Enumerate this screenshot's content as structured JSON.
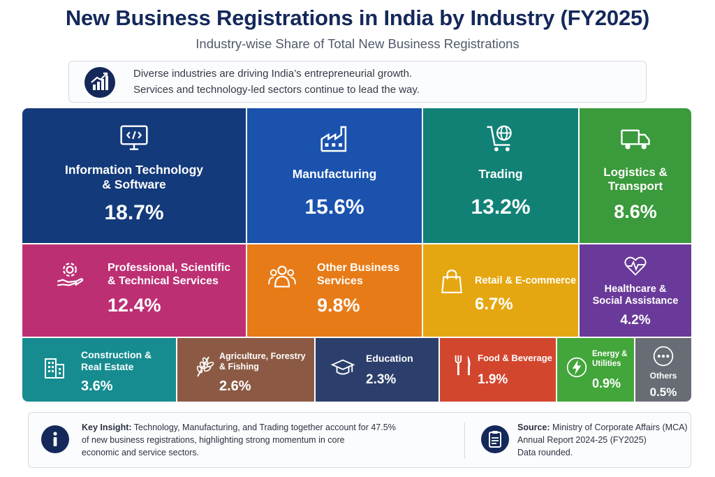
{
  "header": {
    "title": "New Business Registrations in India by Industry (FY2025)",
    "subtitle": "Industry-wise Share of Total New Business Registrations"
  },
  "intro": {
    "icon": "growth-chart-icon",
    "line1": "Diverse industries are driving India’s entrepreneurial growth.",
    "line2": "Services and technology-led sectors continue to lead the way."
  },
  "chart_data": {
    "type": "treemap",
    "unit": "%",
    "categories": [
      "Information Technology & Software",
      "Manufacturing",
      "Trading",
      "Logistics & Transport",
      "Professional, Scientific & Technical Services",
      "Other Business Services",
      "Retail & E-commerce",
      "Healthcare & Social Assistance",
      "Construction & Real Estate",
      "Agriculture, Forestry & Fishing",
      "Education",
      "Food & Beverage",
      "Energy & Utilities",
      "Others"
    ],
    "values": [
      18.7,
      15.6,
      13.2,
      8.6,
      12.4,
      9.8,
      6.7,
      4.2,
      3.6,
      2.6,
      2.3,
      1.9,
      0.9,
      0.5
    ]
  },
  "tiles": [
    {
      "lines": [
        "Information Technology",
        "& Software"
      ],
      "value": "18.7%",
      "color": "#133a7a",
      "icon": "code-monitor-icon"
    },
    {
      "lines": [
        "Manufacturing"
      ],
      "value": "15.6%",
      "color": "#1a52ad",
      "icon": "factory-icon"
    },
    {
      "lines": [
        "Trading"
      ],
      "value": "13.2%",
      "color": "#118176",
      "icon": "globe-cart-icon"
    },
    {
      "lines": [
        "Logistics &",
        "Transport"
      ],
      "value": "8.6%",
      "color": "#3b9a3c",
      "icon": "truck-icon"
    },
    {
      "lines": [
        "Professional, Scientific",
        "& Technical Services"
      ],
      "value": "12.4%",
      "color": "#bd2f73",
      "icon": "gear-hand-icon"
    },
    {
      "lines": [
        "Other Business",
        "Services"
      ],
      "value": "9.8%",
      "color": "#e77b17",
      "icon": "people-group-icon"
    },
    {
      "lines": [
        "Retail & E-commerce"
      ],
      "value": "6.7%",
      "color": "#e5a711",
      "icon": "shopping-bag-icon"
    },
    {
      "lines": [
        "Healthcare &",
        "Social Assistance"
      ],
      "value": "4.2%",
      "color": "#6a3a9a",
      "icon": "heart-pulse-icon"
    },
    {
      "lines": [
        "Construction &",
        "Real Estate"
      ],
      "value": "3.6%",
      "color": "#168c90",
      "icon": "building-icon"
    },
    {
      "lines": [
        "Agriculture, Forestry",
        "& Fishing"
      ],
      "value": "2.6%",
      "color": "#8c5a44",
      "icon": "wheat-icon"
    },
    {
      "lines": [
        "Education"
      ],
      "value": "2.3%",
      "color": "#2c3f6c",
      "icon": "graduation-cap-icon"
    },
    {
      "lines": [
        "Food & Beverage"
      ],
      "value": "1.9%",
      "color": "#d3462e",
      "icon": "fork-knife-icon"
    },
    {
      "lines": [
        "Energy &",
        "Utilities"
      ],
      "value": "0.9%",
      "color": "#42a63a",
      "icon": "lightning-icon"
    },
    {
      "lines": [
        "Others"
      ],
      "value": "0.5%",
      "color": "#686c74",
      "icon": "more-dots-icon"
    }
  ],
  "footer": {
    "insight_icon": "info-icon",
    "insight_label": "Key Insight:",
    "insight_line1": "Technology, Manufacturing, and Trading together account for 47.5%",
    "insight_line2": "of new business registrations, highlighting strong momentum in core",
    "insight_line3": "economic and service sectors.",
    "source_icon": "clipboard-icon",
    "source_label": "Source:",
    "source_line1": "Ministry of Corporate Affairs (MCA)",
    "source_line2": "Annual Report 2024-25 (FY2025)",
    "source_line3": "Data rounded."
  }
}
